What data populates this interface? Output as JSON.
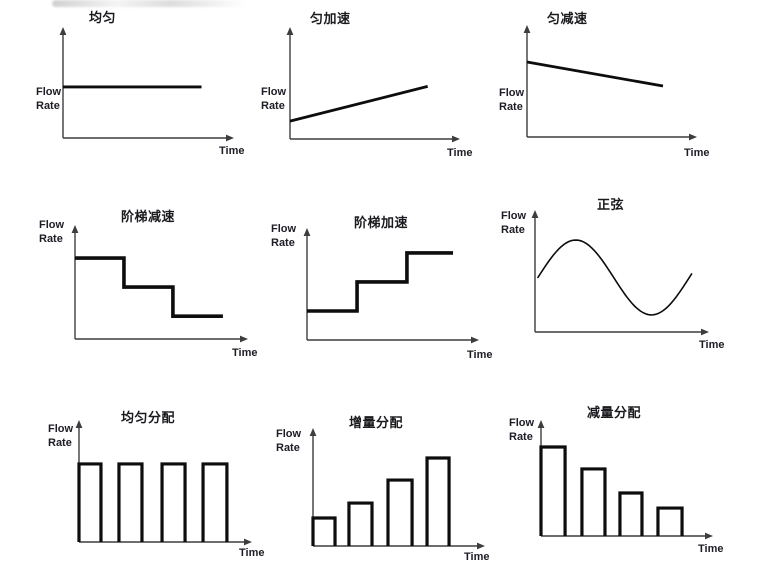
{
  "colors": {
    "background": "#ffffff",
    "axis": "#3d3d3d",
    "data_line": "#0d0d0d",
    "text": "#1d1d26"
  },
  "chart_data": [
    {
      "id": "uniform",
      "type": "line",
      "title": "均匀",
      "ylabel": "Flow Rate",
      "xlabel": "Time",
      "axes": "unlabeled arrow axes, no ticks, values normalized 0-1",
      "points": [
        [
          0,
          0.46
        ],
        [
          0.81,
          0.46
        ]
      ]
    },
    {
      "id": "uniform-acceleration",
      "type": "line",
      "title": "匀加速",
      "ylabel": "Flow Rate",
      "xlabel": "Time",
      "points": [
        [
          0,
          0.16
        ],
        [
          0.81,
          0.47
        ]
      ]
    },
    {
      "id": "uniform-deceleration",
      "type": "line",
      "title": "匀减速",
      "ylabel": "Flow Rate",
      "xlabel": "Time",
      "points": [
        [
          0,
          0.67
        ],
        [
          0.8,
          0.455
        ]
      ]
    },
    {
      "id": "step-deceleration",
      "type": "step",
      "title": "阶梯减速",
      "ylabel": "Flow Rate",
      "xlabel": "Time",
      "points": [
        [
          0,
          0.71
        ],
        [
          0.283,
          0.71
        ],
        [
          0.283,
          0.456
        ],
        [
          0.566,
          0.456
        ],
        [
          0.566,
          0.2
        ],
        [
          0.855,
          0.2
        ]
      ]
    },
    {
      "id": "step-acceleration",
      "type": "step",
      "title": "阶梯加速",
      "ylabel": "Flow Rate",
      "xlabel": "Time",
      "points": [
        [
          0,
          0.259
        ],
        [
          0.291,
          0.259
        ],
        [
          0.291,
          0.518
        ],
        [
          0.581,
          0.518
        ],
        [
          0.581,
          0.777
        ],
        [
          0.849,
          0.777
        ]
      ]
    },
    {
      "id": "sine",
      "type": "sine",
      "title": "正弦",
      "ylabel": "Flow Rate",
      "xlabel": "Time",
      "sine": {
        "x_start": 0.017,
        "x_end": 0.9,
        "mid": 0.447,
        "amplitude": 0.307,
        "period": 0.87
      }
    },
    {
      "id": "uniform-distribution",
      "type": "bar",
      "title": "均匀分配",
      "ylabel": "Flow Rate",
      "xlabel": "Time",
      "bars": [
        {
          "x0": 0.0,
          "x1": 0.127,
          "h": 0.64
        },
        {
          "x0": 0.231,
          "x1": 0.364,
          "h": 0.64
        },
        {
          "x0": 0.48,
          "x1": 0.613,
          "h": 0.64
        },
        {
          "x0": 0.717,
          "x1": 0.855,
          "h": 0.64
        }
      ]
    },
    {
      "id": "incremental-distribution",
      "type": "bar",
      "title": "增量分配",
      "ylabel": "Flow Rate",
      "xlabel": "Time",
      "bars": [
        {
          "x0": 0.0,
          "x1": 0.128,
          "h": 0.237
        },
        {
          "x0": 0.209,
          "x1": 0.343,
          "h": 0.364
        },
        {
          "x0": 0.436,
          "x1": 0.576,
          "h": 0.559
        },
        {
          "x0": 0.663,
          "x1": 0.791,
          "h": 0.746
        }
      ]
    },
    {
      "id": "decremental-distribution",
      "type": "bar",
      "title": "减量分配",
      "ylabel": "Flow Rate",
      "xlabel": "Time",
      "bars": [
        {
          "x0": 0.0,
          "x1": 0.14,
          "h": 0.767
        },
        {
          "x0": 0.238,
          "x1": 0.372,
          "h": 0.578
        },
        {
          "x0": 0.459,
          "x1": 0.587,
          "h": 0.371
        },
        {
          "x0": 0.68,
          "x1": 0.82,
          "h": 0.241
        }
      ]
    }
  ]
}
